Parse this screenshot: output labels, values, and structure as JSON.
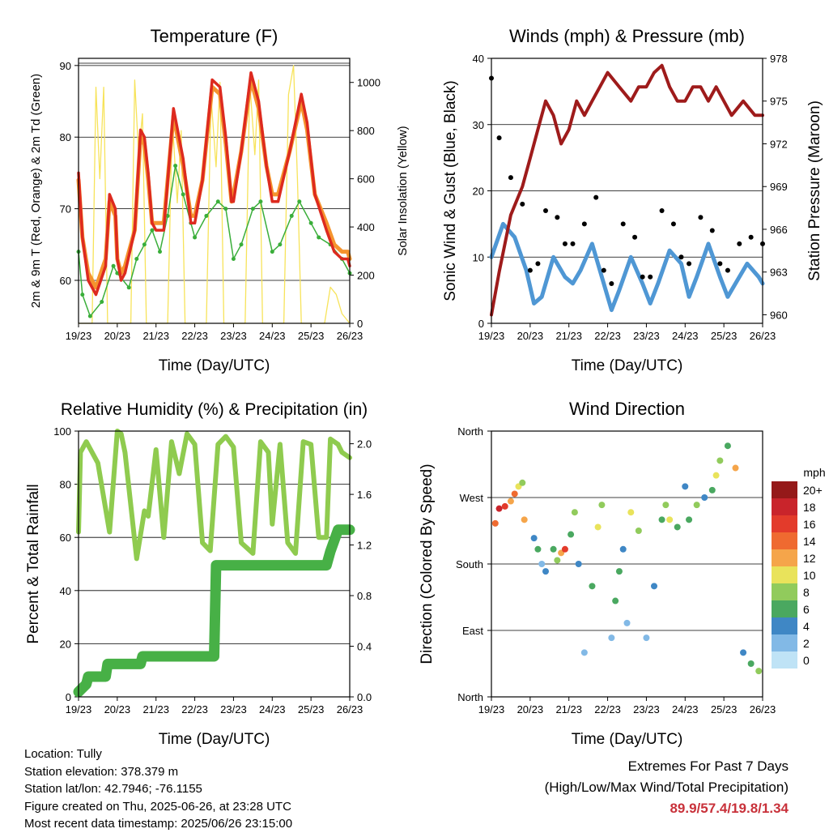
{
  "chart_data": [
    {
      "type": "line",
      "title": "Temperature (F)",
      "xlabel": "Time (Day/UTC)",
      "ylabel": "2m & 9m T (Red, Orange) & 2m Td (Green)",
      "ylabel_right": "Solar Insolation (Yellow)",
      "xticks": [
        "19/23",
        "20/23",
        "21/23",
        "22/23",
        "23/23",
        "24/23",
        "25/23",
        "26/23"
      ],
      "ylim": [
        54,
        91
      ],
      "yticks": [
        60,
        70,
        80,
        90
      ],
      "ylim_right": [
        0,
        1100
      ],
      "yticks_right": [
        0,
        200,
        400,
        600,
        800,
        1000
      ],
      "grid": true,
      "series": [
        {
          "name": "2m T",
          "color": "#dd2a1f",
          "x_days": [
            0,
            0.1,
            0.25,
            0.45,
            0.7,
            0.8,
            0.95,
            1.0,
            1.1,
            1.2,
            1.45,
            1.6,
            1.7,
            1.8,
            1.9,
            2.0,
            2.2,
            2.45,
            2.7,
            2.9,
            3.0,
            3.2,
            3.45,
            3.65,
            3.8,
            3.95,
            4.0,
            4.2,
            4.45,
            4.65,
            4.85,
            5.0,
            5.15,
            5.45,
            5.75,
            5.9,
            6.1,
            6.4,
            6.6,
            6.8,
            6.95,
            7.0
          ],
          "values": [
            75,
            66,
            60,
            58,
            62,
            72,
            70,
            63,
            60,
            61,
            67,
            81,
            80,
            75,
            68,
            67,
            67,
            84,
            77,
            68,
            68,
            74,
            88,
            87,
            80,
            71,
            71,
            78,
            89,
            85,
            76,
            71,
            71,
            78,
            86,
            82,
            72,
            67,
            64,
            63,
            63,
            62
          ]
        },
        {
          "name": "9m T",
          "color": "#f5942e",
          "x_days": [
            0,
            0.1,
            0.25,
            0.45,
            0.7,
            0.8,
            0.95,
            1.0,
            1.1,
            1.2,
            1.45,
            1.6,
            1.7,
            1.8,
            1.9,
            2.0,
            2.2,
            2.45,
            2.7,
            2.9,
            3.0,
            3.2,
            3.45,
            3.65,
            3.8,
            3.95,
            4.0,
            4.2,
            4.45,
            4.65,
            4.85,
            5.0,
            5.15,
            5.45,
            5.75,
            5.9,
            6.1,
            6.4,
            6.6,
            6.8,
            6.95,
            7.0
          ],
          "values": [
            74,
            66,
            61,
            59,
            63,
            71,
            69,
            63,
            61,
            62,
            67,
            80,
            79,
            74,
            68,
            68,
            68,
            83,
            76,
            69,
            69,
            74,
            87,
            86,
            79,
            71,
            72,
            78,
            88,
            84,
            76,
            72,
            72,
            78,
            85,
            81,
            72,
            68,
            65,
            64,
            64,
            63
          ]
        },
        {
          "name": "2m Td",
          "color": "#3aae3a",
          "x_days": [
            0,
            0.1,
            0.3,
            0.6,
            0.9,
            1.0,
            1.3,
            1.5,
            1.7,
            1.9,
            2.1,
            2.3,
            2.5,
            2.7,
            2.9,
            3.0,
            3.3,
            3.6,
            3.8,
            4.0,
            4.2,
            4.5,
            4.7,
            5.0,
            5.2,
            5.5,
            5.7,
            6.0,
            6.2,
            6.5,
            6.8,
            7.0
          ],
          "values": [
            64,
            58,
            55,
            57,
            62,
            61,
            59,
            63,
            65,
            67,
            64,
            69,
            76,
            72,
            68,
            66,
            69,
            71,
            70,
            63,
            65,
            70,
            71,
            64,
            65,
            69,
            71,
            68,
            66,
            65,
            63,
            61
          ]
        },
        {
          "name": "Solar Insolation",
          "color": "#f7e35a",
          "axis": "right",
          "x_days": [
            0,
            0.35,
            0.45,
            0.55,
            0.65,
            0.75,
            1.0,
            1.35,
            1.45,
            1.55,
            1.65,
            1.75,
            2.0,
            2.3,
            2.42,
            2.55,
            2.65,
            2.75,
            3.0,
            3.3,
            3.42,
            3.55,
            3.65,
            3.75,
            4.0,
            4.3,
            4.42,
            4.55,
            4.65,
            4.75,
            5.0,
            5.3,
            5.42,
            5.55,
            5.65,
            5.75,
            6.0,
            6.35,
            6.5,
            6.65,
            6.8,
            7.0
          ],
          "values": [
            0,
            0,
            980,
            600,
            980,
            0,
            0,
            0,
            1010,
            700,
            870,
            0,
            0,
            0,
            850,
            500,
            800,
            0,
            0,
            0,
            940,
            650,
            1000,
            0,
            0,
            0,
            1000,
            700,
            1010,
            0,
            0,
            0,
            950,
            1070,
            600,
            0,
            0,
            0,
            150,
            120,
            40,
            0
          ]
        }
      ]
    },
    {
      "type": "line",
      "title": "Winds (mph) & Pressure (mb)",
      "xlabel": "Time (Day/UTC)",
      "ylabel": "Sonic Wind & Gust (Blue, Black)",
      "ylabel_right": "Station Pressure (Maroon)",
      "xticks": [
        "19/23",
        "20/23",
        "21/23",
        "22/23",
        "23/23",
        "24/23",
        "25/23",
        "26/23"
      ],
      "ylim": [
        0,
        40
      ],
      "yticks": [
        0,
        10,
        20,
        30,
        40
      ],
      "ylim_right": [
        959.4,
        978
      ],
      "yticks_right": [
        960,
        963,
        966,
        969,
        972,
        975,
        978
      ],
      "grid": true,
      "series": [
        {
          "name": "Sonic Wind",
          "color": "#4f97d4",
          "x_days": [
            0,
            0.3,
            0.6,
            0.9,
            1.1,
            1.3,
            1.6,
            1.9,
            2.1,
            2.3,
            2.6,
            2.9,
            3.1,
            3.3,
            3.6,
            3.9,
            4.1,
            4.3,
            4.6,
            4.9,
            5.1,
            5.3,
            5.6,
            5.9,
            6.1,
            6.3,
            6.6,
            6.9,
            7.0
          ],
          "values": [
            10,
            15,
            13,
            8,
            3,
            4,
            10,
            7,
            6,
            8,
            12,
            6,
            2,
            5,
            10,
            6,
            3,
            6,
            11,
            9,
            4,
            7,
            12,
            7,
            4,
            6,
            9,
            7,
            6
          ]
        },
        {
          "name": "Gust",
          "color": "#000000",
          "x_days": [
            0,
            0.2,
            0.5,
            0.8,
            1.0,
            1.2,
            1.4,
            1.7,
            1.9,
            2.1,
            2.4,
            2.7,
            2.9,
            3.1,
            3.4,
            3.7,
            3.9,
            4.1,
            4.4,
            4.7,
            4.9,
            5.1,
            5.4,
            5.7,
            5.9,
            6.1,
            6.4,
            6.7,
            7.0
          ],
          "values": [
            37,
            28,
            22,
            18,
            8,
            9,
            17,
            16,
            12,
            12,
            15,
            19,
            8,
            6,
            15,
            13,
            7,
            7,
            17,
            15,
            10,
            9,
            16,
            14,
            9,
            8,
            12,
            13,
            12
          ]
        },
        {
          "name": "Station Pressure",
          "color": "#9e1b1b",
          "axis": "right",
          "x_days": [
            0,
            0.2,
            0.5,
            0.8,
            1.0,
            1.2,
            1.4,
            1.6,
            1.8,
            2.0,
            2.2,
            2.4,
            2.6,
            2.8,
            3.0,
            3.3,
            3.6,
            3.8,
            4.0,
            4.2,
            4.4,
            4.6,
            4.8,
            5.0,
            5.2,
            5.4,
            5.6,
            5.8,
            6.0,
            6.2,
            6.5,
            6.8,
            7.0
          ],
          "values": [
            960,
            963,
            967,
            969,
            971,
            973,
            975,
            974,
            972,
            973,
            975,
            974,
            975,
            976,
            977,
            976,
            975,
            976,
            976,
            977,
            977.5,
            976,
            975,
            975,
            976,
            976,
            975,
            976,
            975,
            974,
            975,
            974,
            974
          ]
        }
      ]
    },
    {
      "type": "line",
      "title": "Relative Humidity (%) & Precipitation (in)",
      "xlabel": "Time (Day/UTC)",
      "ylabel": "Percent & Total Rainfall",
      "xticks": [
        "19/23",
        "20/23",
        "21/23",
        "22/23",
        "23/23",
        "24/23",
        "25/23",
        "26/23"
      ],
      "ylim": [
        0,
        100
      ],
      "yticks": [
        0,
        20,
        40,
        60,
        80,
        100
      ],
      "ylim_right": [
        0,
        2.1
      ],
      "yticks_right": [
        "0.0",
        "0.4",
        "0.8",
        "1.2",
        "1.6",
        "2.0"
      ],
      "grid": true,
      "series": [
        {
          "name": "Relative Humidity",
          "color": "#8fcb4f",
          "x_days": [
            0,
            0.05,
            0.2,
            0.5,
            0.8,
            1.0,
            1.1,
            1.2,
            1.5,
            1.7,
            1.8,
            2.0,
            2.2,
            2.4,
            2.6,
            2.8,
            3.0,
            3.2,
            3.4,
            3.6,
            3.8,
            4.0,
            4.2,
            4.5,
            4.7,
            4.9,
            5.0,
            5.2,
            5.4,
            5.6,
            5.8,
            6.0,
            6.2,
            6.4,
            6.5,
            6.7,
            6.8,
            7.0
          ],
          "values": [
            62,
            92,
            96,
            88,
            62,
            100,
            99,
            92,
            52,
            70,
            68,
            93,
            60,
            96,
            84,
            99,
            95,
            58,
            55,
            95,
            98,
            94,
            58,
            54,
            96,
            92,
            65,
            95,
            58,
            54,
            96,
            95,
            60,
            60,
            97,
            95,
            92,
            90
          ]
        },
        {
          "name": "Total Precipitation",
          "color": "#47b046",
          "axis": "right",
          "x_days": [
            0,
            0.2,
            0.25,
            0.7,
            0.75,
            1.6,
            1.65,
            3.5,
            3.55,
            6.4,
            6.5,
            6.7,
            7.0
          ],
          "values": [
            0.04,
            0.1,
            0.16,
            0.16,
            0.26,
            0.26,
            0.32,
            0.32,
            1.04,
            1.04,
            1.15,
            1.32,
            1.32
          ]
        }
      ]
    },
    {
      "type": "scatter",
      "title": "Wind Direction",
      "xlabel": "Time (Day/UTC)",
      "ylabel": "Direction (Colored By Speed)",
      "xticks": [
        "19/23",
        "20/23",
        "21/23",
        "22/23",
        "23/23",
        "24/23",
        "25/23",
        "26/23"
      ],
      "yticks": [
        "North",
        "East",
        "South",
        "West",
        "North"
      ],
      "ylim": [
        0,
        360
      ],
      "grid": true,
      "series": [
        {
          "name": "Wind Direction",
          "x_days": [
            0.1,
            0.2,
            0.35,
            0.5,
            0.6,
            0.7,
            0.8,
            0.85,
            1.1,
            1.2,
            1.3,
            1.4,
            1.6,
            1.7,
            1.8,
            1.9,
            2.05,
            2.15,
            2.25,
            2.4,
            2.6,
            2.75,
            2.85,
            3.1,
            3.2,
            3.3,
            3.4,
            3.5,
            3.6,
            3.8,
            4.0,
            4.2,
            4.4,
            4.5,
            4.6,
            4.8,
            5.0,
            5.1,
            5.3,
            5.5,
            5.7,
            5.8,
            5.9,
            6.1,
            6.3,
            6.5,
            6.7,
            6.9
          ],
          "values": [
            235,
            255,
            258,
            265,
            275,
            285,
            290,
            240,
            215,
            200,
            180,
            170,
            200,
            185,
            195,
            200,
            220,
            250,
            180,
            60,
            150,
            230,
            260,
            80,
            130,
            170,
            200,
            100,
            250,
            225,
            80,
            150,
            240,
            260,
            240,
            230,
            285,
            240,
            260,
            270,
            280,
            300,
            320,
            340,
            310,
            60,
            45,
            35
          ],
          "speeds": [
            14,
            18,
            15,
            12,
            14,
            10,
            8,
            12,
            4,
            6,
            2,
            4,
            6,
            8,
            12,
            16,
            5,
            8,
            4,
            2,
            6,
            10,
            8,
            2,
            5,
            6,
            4,
            2,
            10,
            8,
            2,
            4,
            6,
            8,
            10,
            6,
            4,
            6,
            8,
            4,
            6,
            10,
            8,
            6,
            12,
            4,
            6,
            8
          ]
        }
      ],
      "legend": {
        "title": "mph",
        "labels": [
          "20+",
          "18",
          "16",
          "14",
          "12",
          "10",
          "8",
          "6",
          "4",
          "2",
          "0"
        ],
        "colors": [
          "#951919",
          "#c9242b",
          "#e33b2b",
          "#ef6a30",
          "#f5a54a",
          "#e9e35b",
          "#91cb5c",
          "#4aa860",
          "#3f87c5",
          "#82b9e6",
          "#bfe3f6"
        ]
      }
    }
  ],
  "info": {
    "location": "Location: Tully",
    "elevation": "Station elevation: 378.379 m",
    "latlon": "Station lat/lon: 42.7946; -76.1155",
    "created": "Figure created on Thu, 2025-06-26, at 23:28 UTC",
    "recent": "Most recent data timestamp: 2025/06/26 23:15:00"
  },
  "extremes": {
    "title": "Extremes For Past 7 Days",
    "subtitle": "(High/Low/Max Wind/Total Precipitation)",
    "values": "89.9/57.4/19.8/1.34"
  }
}
